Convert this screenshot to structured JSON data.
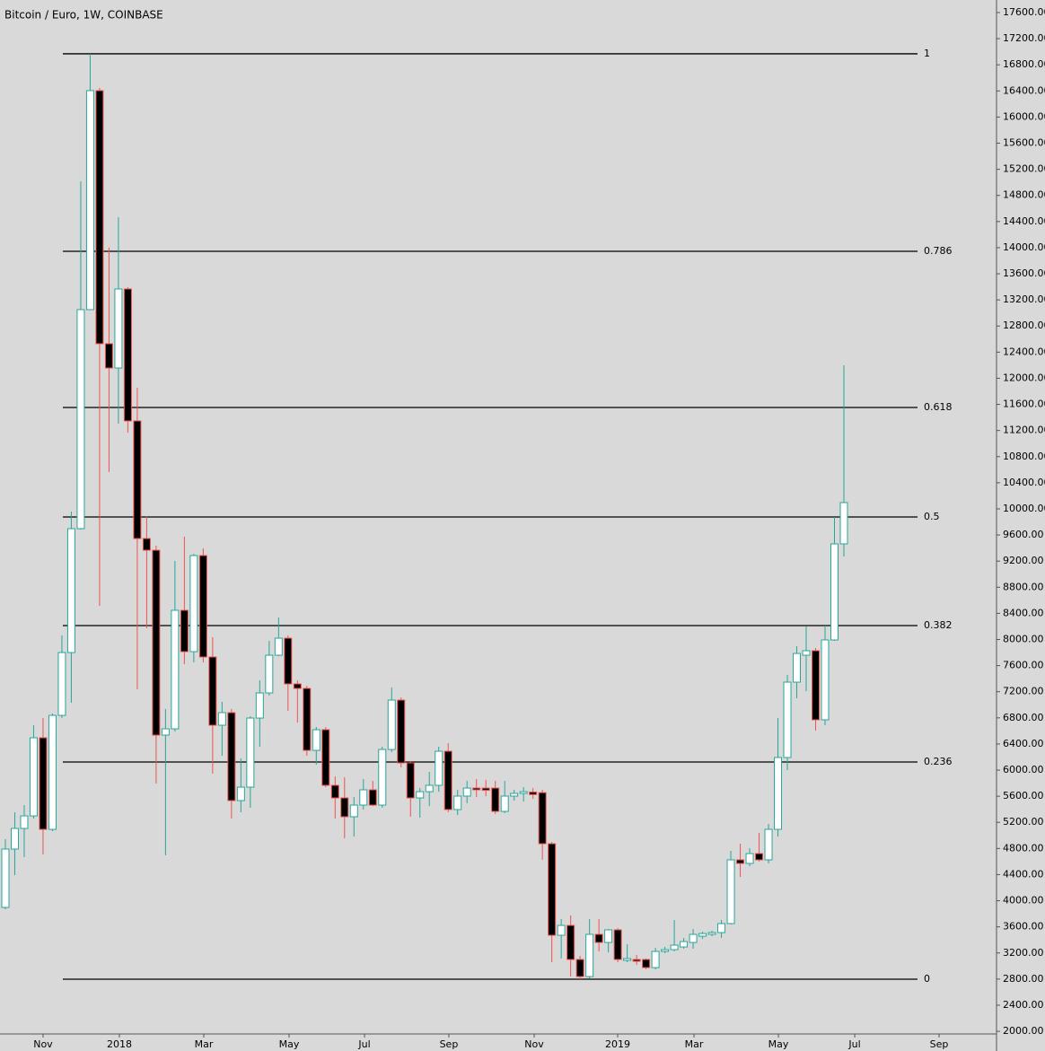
{
  "chart_data": {
    "type": "candlestick",
    "title": "Bitcoin / Euro, 1W, COINBASE",
    "open": [
      3897,
      4791,
      5107,
      5299,
      6495,
      5093,
      6838,
      7800,
      9697,
      13051,
      16404,
      12529,
      12157,
      13367,
      11347,
      9546,
      9367,
      6536,
      6632,
      8447,
      7814,
      9285,
      7732,
      6687,
      6880,
      5533,
      5739,
      6797,
      7182,
      7759,
      8020,
      7320,
      7251,
      6302,
      6619,
      5767,
      5574,
      5286,
      5464,
      5698,
      5464,
      6316,
      7072,
      6110,
      5574,
      5670,
      5767,
      6289,
      5396,
      5602,
      5725,
      5725,
      5725,
      5368,
      5602,
      5643,
      5665,
      5655,
      4873,
      3471,
      3622,
      3100,
      2839,
      3485,
      3361,
      3554,
      3086,
      3100,
      3100,
      2976,
      3224,
      3251,
      3292,
      3361,
      3457,
      3485,
      3512,
      3650,
      4626,
      4571,
      4722,
      4626,
      5093,
      6193,
      7347,
      7759,
      7828,
      6770,
      7993,
      9464
    ],
    "high": [
      4942,
      5354,
      5464,
      6687,
      6797,
      6866,
      8062,
      9958,
      15016,
      16968,
      16445,
      14000,
      14466,
      13395,
      11855,
      9890,
      9436,
      6935,
      9202,
      9573,
      9312,
      9395,
      8034,
      7045,
      6935,
      6179,
      6825,
      7374,
      7979,
      8337,
      8062,
      7374,
      7292,
      6660,
      6660,
      5904,
      5890,
      5588,
      5863,
      5835,
      6358,
      7265,
      7113,
      6138,
      5725,
      5973,
      6358,
      6413,
      5698,
      5835,
      5863,
      5850,
      5835,
      5835,
      5698,
      5739,
      5725,
      5698,
      4901,
      3719,
      3774,
      3155,
      3719,
      3719,
      3567,
      3581,
      3334,
      3169,
      3114,
      3279,
      3293,
      3705,
      3430,
      3567,
      3526,
      3540,
      3705,
      4763,
      4873,
      4804,
      5038,
      5176,
      6797,
      7457,
      7897,
      8199,
      7869,
      8213,
      9876,
      12199
    ],
    "low": [
      3870,
      4392,
      4667,
      5258,
      4708,
      5066,
      6797,
      7031,
      9683,
      13051,
      8515,
      10563,
      11305,
      11168,
      7237,
      8172,
      5794,
      4695,
      6591,
      7622,
      7649,
      7649,
      5945,
      6220,
      5258,
      5354,
      5423,
      6358,
      7141,
      7745,
      6907,
      6728,
      6220,
      6083,
      5739,
      5258,
      4956,
      4983,
      5396,
      5450,
      5423,
      6275,
      6041,
      5286,
      5272,
      5450,
      5670,
      5354,
      5313,
      5492,
      5588,
      5600,
      5327,
      5340,
      5533,
      5519,
      5560,
      4626,
      3059,
      3114,
      2839,
      2798,
      2812,
      3224,
      3210,
      3059,
      3059,
      3018,
      2949,
      2949,
      3196,
      3224,
      3265,
      3265,
      3416,
      3457,
      3430,
      3636,
      4365,
      4530,
      4599,
      4571,
      4983,
      6000,
      7100,
      7210,
      6605,
      6687,
      7979,
      9271
    ],
    "close": [
      4791,
      5107,
      5299,
      6495,
      5093,
      6838,
      7800,
      9697,
      13051,
      16404,
      12529,
      12157,
      13367,
      11347,
      9546,
      9367,
      6536,
      6632,
      8447,
      7814,
      9285,
      7732,
      6687,
      6880,
      5533,
      5739,
      6797,
      7182,
      7759,
      8020,
      7320,
      7251,
      6302,
      6619,
      5767,
      5574,
      5286,
      5464,
      5698,
      5464,
      6316,
      7072,
      6110,
      5574,
      5670,
      5767,
      6289,
      5396,
      5602,
      5725,
      5698,
      5690,
      5368,
      5602,
      5643,
      5670,
      5625,
      4873,
      3471,
      3622,
      3100,
      2839,
      3485,
      3361,
      3554,
      3100,
      3114,
      3073,
      2976,
      3224,
      3251,
      3320,
      3375,
      3485,
      3498,
      3512,
      3650,
      4626,
      4571,
      4722,
      4626,
      5093,
      6193,
      7347,
      7786,
      7828,
      6770,
      7993,
      9464,
      10096
    ],
    "up_color": "#26a69a",
    "down_color": "#ef5350",
    "xlim": [
      -0.57,
      105.2
    ],
    "xticks": [
      {
        "value": 4.0,
        "label": "Nov"
      },
      {
        "value": 12.1,
        "label": "2018"
      },
      {
        "value": 21.06,
        "label": "Mar"
      },
      {
        "value": 30.11,
        "label": "May"
      },
      {
        "value": 38.12,
        "label": "Jul"
      },
      {
        "value": 47.07,
        "label": "Sep"
      },
      {
        "value": 56.13,
        "label": "Nov"
      },
      {
        "value": 64.99,
        "label": "2019"
      },
      {
        "value": 73.09,
        "label": "Mar"
      },
      {
        "value": 82.05,
        "label": "May"
      },
      {
        "value": 90.15,
        "label": "Jul"
      },
      {
        "value": 99.1,
        "label": "Sep"
      }
    ],
    "ylim": [
      1960,
      17792
    ],
    "yticks": [
      {
        "value": 2000,
        "label": "2000.00"
      },
      {
        "value": 2400,
        "label": "2400.00"
      },
      {
        "value": 2800,
        "label": "2800.00"
      },
      {
        "value": 3200,
        "label": "3200.00"
      },
      {
        "value": 3600,
        "label": "3600.00"
      },
      {
        "value": 4000,
        "label": "4000.00"
      },
      {
        "value": 4400,
        "label": "4400.00"
      },
      {
        "value": 4800,
        "label": "4800.00"
      },
      {
        "value": 5200,
        "label": "5200.00"
      },
      {
        "value": 5600,
        "label": "5600.00"
      },
      {
        "value": 6000,
        "label": "6000.00"
      },
      {
        "value": 6400,
        "label": "6400.00"
      },
      {
        "value": 6800,
        "label": "6800.00"
      },
      {
        "value": 7200,
        "label": "7200.00"
      },
      {
        "value": 7600,
        "label": "7600.00"
      },
      {
        "value": 8000,
        "label": "8000.00"
      },
      {
        "value": 8400,
        "label": "8400.00"
      },
      {
        "value": 8800,
        "label": "8800.00"
      },
      {
        "value": 9200,
        "label": "9200.00"
      },
      {
        "value": 9600,
        "label": "9600.00"
      },
      {
        "value": 10000,
        "label": "10000.00"
      },
      {
        "value": 10400,
        "label": "10400.00"
      },
      {
        "value": 10800,
        "label": "10800.00"
      },
      {
        "value": 11200,
        "label": "11200.00"
      },
      {
        "value": 11600,
        "label": "11600.00"
      },
      {
        "value": 12000,
        "label": "12000.00"
      },
      {
        "value": 12400,
        "label": "12400.00"
      },
      {
        "value": 12800,
        "label": "12800.00"
      },
      {
        "value": 13200,
        "label": "13200.00"
      },
      {
        "value": 13600,
        "label": "13600.00"
      },
      {
        "value": 14000,
        "label": "14000.00"
      },
      {
        "value": 14400,
        "label": "14400.00"
      },
      {
        "value": 14800,
        "label": "14800.00"
      },
      {
        "value": 15200,
        "label": "15200.00"
      },
      {
        "value": 15600,
        "label": "15600.00"
      },
      {
        "value": 16000,
        "label": "16000.00"
      },
      {
        "value": 16400,
        "label": "16400.00"
      },
      {
        "value": 16800,
        "label": "16800.00"
      },
      {
        "value": 17200,
        "label": "17200.00"
      },
      {
        "value": 17600,
        "label": "17600.00"
      }
    ],
    "fib_levels": [
      {
        "ratio": 1,
        "price": 16968
      },
      {
        "ratio": 0.786,
        "price": 13944
      },
      {
        "ratio": 0.618,
        "price": 11553
      },
      {
        "ratio": 0.5,
        "price": 9876
      },
      {
        "ratio": 0.382,
        "price": 8213
      },
      {
        "ratio": 0.236,
        "price": 6124
      },
      {
        "ratio": 0,
        "price": 2798
      }
    ]
  }
}
